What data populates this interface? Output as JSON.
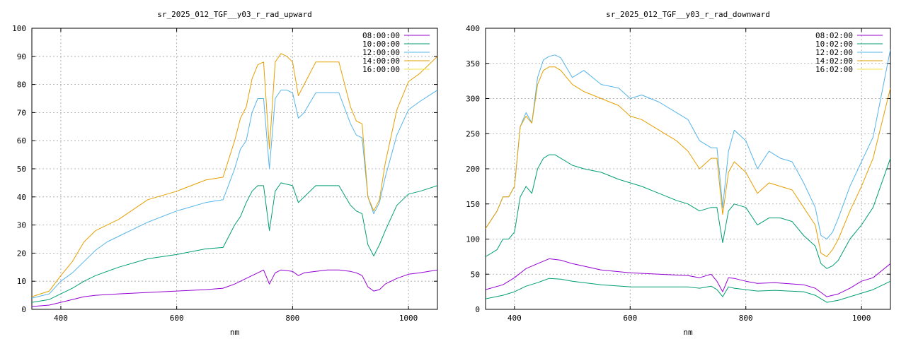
{
  "chart_data": [
    {
      "type": "line",
      "title": "sr_2025_012_TGF__y03_r_rad_upward",
      "xlabel": "nm",
      "ylabel": "",
      "xlim": [
        350,
        1050
      ],
      "ylim": [
        0,
        100
      ],
      "xticks": [
        400,
        600,
        800,
        1000
      ],
      "yticks": [
        0,
        10,
        20,
        30,
        40,
        50,
        60,
        70,
        80,
        90,
        100
      ],
      "grid": true,
      "legend_position": "top-right",
      "series": [
        {
          "name": "08:00:00",
          "color": "#9400d3",
          "x": [
            350,
            380,
            400,
            420,
            440,
            460,
            500,
            550,
            600,
            650,
            680,
            700,
            720,
            740,
            750,
            760,
            770,
            780,
            800,
            810,
            820,
            840,
            860,
            880,
            900,
            910,
            920,
            930,
            940,
            950,
            960,
            980,
            1000,
            1020,
            1050
          ],
          "y": [
            1,
            1.5,
            2.5,
            3.5,
            4.5,
            5,
            5.5,
            6,
            6.5,
            7,
            7.5,
            9,
            11,
            13,
            14,
            9,
            13,
            14,
            13.5,
            12,
            13,
            13.5,
            14,
            14,
            13.5,
            13,
            12,
            8,
            6.5,
            7,
            9,
            11,
            12.5,
            13,
            14
          ]
        },
        {
          "name": "10:00:00",
          "color": "#009e73",
          "x": [
            350,
            380,
            400,
            420,
            440,
            460,
            500,
            550,
            600,
            650,
            680,
            700,
            710,
            720,
            730,
            740,
            750,
            760,
            770,
            780,
            800,
            810,
            820,
            840,
            860,
            880,
            900,
            910,
            920,
            930,
            940,
            950,
            960,
            980,
            1000,
            1020,
            1050
          ],
          "y": [
            2.5,
            3.5,
            5.5,
            7.5,
            10,
            12,
            15,
            18,
            19.5,
            21.5,
            22,
            30,
            33,
            38,
            42,
            44,
            44,
            28,
            42,
            45,
            44,
            38,
            40,
            44,
            44,
            44,
            37,
            35,
            34,
            23,
            19,
            23,
            28,
            37,
            41,
            42,
            44
          ]
        },
        {
          "name": "12:00:00",
          "color": "#56b4e9",
          "x": [
            350,
            380,
            400,
            420,
            440,
            460,
            480,
            500,
            550,
            600,
            650,
            680,
            700,
            710,
            720,
            730,
            740,
            750,
            760,
            770,
            780,
            790,
            800,
            810,
            820,
            840,
            860,
            880,
            900,
            910,
            920,
            930,
            940,
            950,
            960,
            980,
            1000,
            1020,
            1050
          ],
          "y": [
            4,
            5.5,
            10,
            13,
            17,
            21,
            24,
            26,
            31,
            35,
            38,
            39,
            50,
            57,
            60,
            70,
            75,
            75,
            50,
            75,
            78,
            78,
            77,
            68,
            70,
            77,
            77,
            77,
            66,
            62,
            61,
            40,
            34,
            38,
            47,
            62,
            71,
            74,
            78
          ]
        },
        {
          "name": "14:00:00",
          "color": "#e69f00",
          "x": [
            350,
            380,
            400,
            420,
            440,
            460,
            480,
            500,
            550,
            600,
            650,
            680,
            700,
            710,
            720,
            730,
            740,
            750,
            760,
            770,
            780,
            790,
            800,
            810,
            820,
            840,
            860,
            880,
            900,
            910,
            920,
            930,
            940,
            950,
            960,
            980,
            1000,
            1020,
            1050
          ],
          "y": [
            4.5,
            6.5,
            12,
            17,
            24,
            28,
            30,
            32,
            39,
            42,
            46,
            47,
            60,
            68,
            72,
            82,
            87,
            88,
            57,
            88,
            91,
            90,
            88,
            76,
            80,
            88,
            88,
            88,
            72,
            67,
            66,
            40,
            35,
            39,
            52,
            71,
            81,
            84,
            90
          ]
        },
        {
          "name": "16:00:00",
          "color": "#f0e442",
          "x": [],
          "y": []
        }
      ]
    },
    {
      "type": "line",
      "title": "sr_2025_012_TGF__y03_r_rad_downward",
      "xlabel": "nm",
      "ylabel": "",
      "xlim": [
        350,
        1050
      ],
      "ylim": [
        0,
        400
      ],
      "xticks": [
        400,
        600,
        800,
        1000
      ],
      "yticks": [
        0,
        50,
        100,
        150,
        200,
        250,
        300,
        350,
        400
      ],
      "grid": true,
      "legend_position": "top-right",
      "series": [
        {
          "name": "08:02:00",
          "color": "#9400d3",
          "x": [
            350,
            380,
            400,
            420,
            440,
            460,
            480,
            500,
            550,
            600,
            650,
            700,
            720,
            740,
            750,
            760,
            770,
            780,
            800,
            820,
            850,
            900,
            920,
            940,
            960,
            980,
            1000,
            1020,
            1050
          ],
          "y": [
            28,
            35,
            45,
            58,
            65,
            72,
            70,
            65,
            56,
            52,
            50,
            48,
            45,
            50,
            40,
            25,
            45,
            44,
            40,
            37,
            38,
            35,
            30,
            18,
            22,
            30,
            40,
            45,
            65
          ]
        },
        {
          "name": "10:02:00",
          "color": "#009e73",
          "x": [
            350,
            380,
            400,
            420,
            440,
            460,
            480,
            500,
            550,
            600,
            650,
            700,
            720,
            740,
            750,
            760,
            770,
            780,
            800,
            820,
            850,
            900,
            920,
            940,
            960,
            980,
            1000,
            1020,
            1050
          ],
          "y": [
            15,
            20,
            25,
            33,
            38,
            44,
            43,
            40,
            35,
            32,
            32,
            32,
            30,
            33,
            28,
            18,
            32,
            30,
            28,
            26,
            27,
            25,
            20,
            10,
            13,
            18,
            23,
            28,
            40
          ]
        },
        {
          "name": "12:02:00",
          "color": "#56b4e9",
          "x": [
            350,
            370,
            380,
            390,
            400,
            410,
            420,
            430,
            440,
            450,
            460,
            470,
            480,
            500,
            520,
            550,
            580,
            600,
            620,
            650,
            680,
            700,
            720,
            740,
            750,
            755,
            760,
            770,
            780,
            800,
            820,
            840,
            860,
            880,
            900,
            920,
            930,
            940,
            950,
            960,
            980,
            1000,
            1020,
            1050
          ],
          "y": [
            115,
            140,
            160,
            160,
            175,
            260,
            280,
            265,
            330,
            355,
            360,
            362,
            358,
            330,
            340,
            320,
            315,
            300,
            305,
            295,
            280,
            270,
            240,
            230,
            230,
            190,
            145,
            225,
            255,
            240,
            200,
            225,
            215,
            210,
            180,
            145,
            105,
            100,
            110,
            130,
            175,
            210,
            245,
            370
          ]
        },
        {
          "name": "14:02:00",
          "color": "#e69f00",
          "x": [
            350,
            370,
            380,
            390,
            400,
            410,
            420,
            430,
            440,
            450,
            460,
            470,
            480,
            500,
            520,
            550,
            580,
            600,
            620,
            650,
            680,
            700,
            720,
            740,
            750,
            755,
            760,
            770,
            780,
            800,
            820,
            840,
            860,
            880,
            900,
            920,
            930,
            940,
            950,
            960,
            980,
            1000,
            1020,
            1050
          ],
          "y": [
            115,
            140,
            160,
            160,
            175,
            260,
            275,
            265,
            320,
            340,
            345,
            345,
            340,
            320,
            310,
            300,
            290,
            275,
            270,
            255,
            240,
            225,
            200,
            215,
            215,
            175,
            135,
            195,
            210,
            195,
            165,
            180,
            175,
            170,
            145,
            120,
            80,
            75,
            85,
            100,
            140,
            175,
            215,
            315
          ]
        },
        {
          "name": "16:02:00",
          "color": "#f0e442",
          "x": [],
          "y": []
        },
        {
          "name": "",
          "color": "#009e73",
          "x": [
            350,
            370,
            380,
            390,
            400,
            410,
            420,
            430,
            440,
            450,
            460,
            470,
            480,
            500,
            520,
            550,
            580,
            600,
            620,
            650,
            680,
            700,
            720,
            740,
            750,
            755,
            760,
            770,
            780,
            800,
            820,
            840,
            860,
            880,
            900,
            920,
            930,
            940,
            950,
            960,
            980,
            1000,
            1020,
            1050
          ],
          "y": [
            75,
            85,
            100,
            100,
            110,
            160,
            175,
            165,
            200,
            215,
            220,
            220,
            215,
            205,
            200,
            195,
            185,
            180,
            175,
            165,
            155,
            150,
            140,
            145,
            145,
            120,
            95,
            140,
            150,
            145,
            120,
            130,
            130,
            125,
            105,
            90,
            65,
            58,
            62,
            70,
            100,
            120,
            145,
            215
          ]
        }
      ]
    }
  ]
}
